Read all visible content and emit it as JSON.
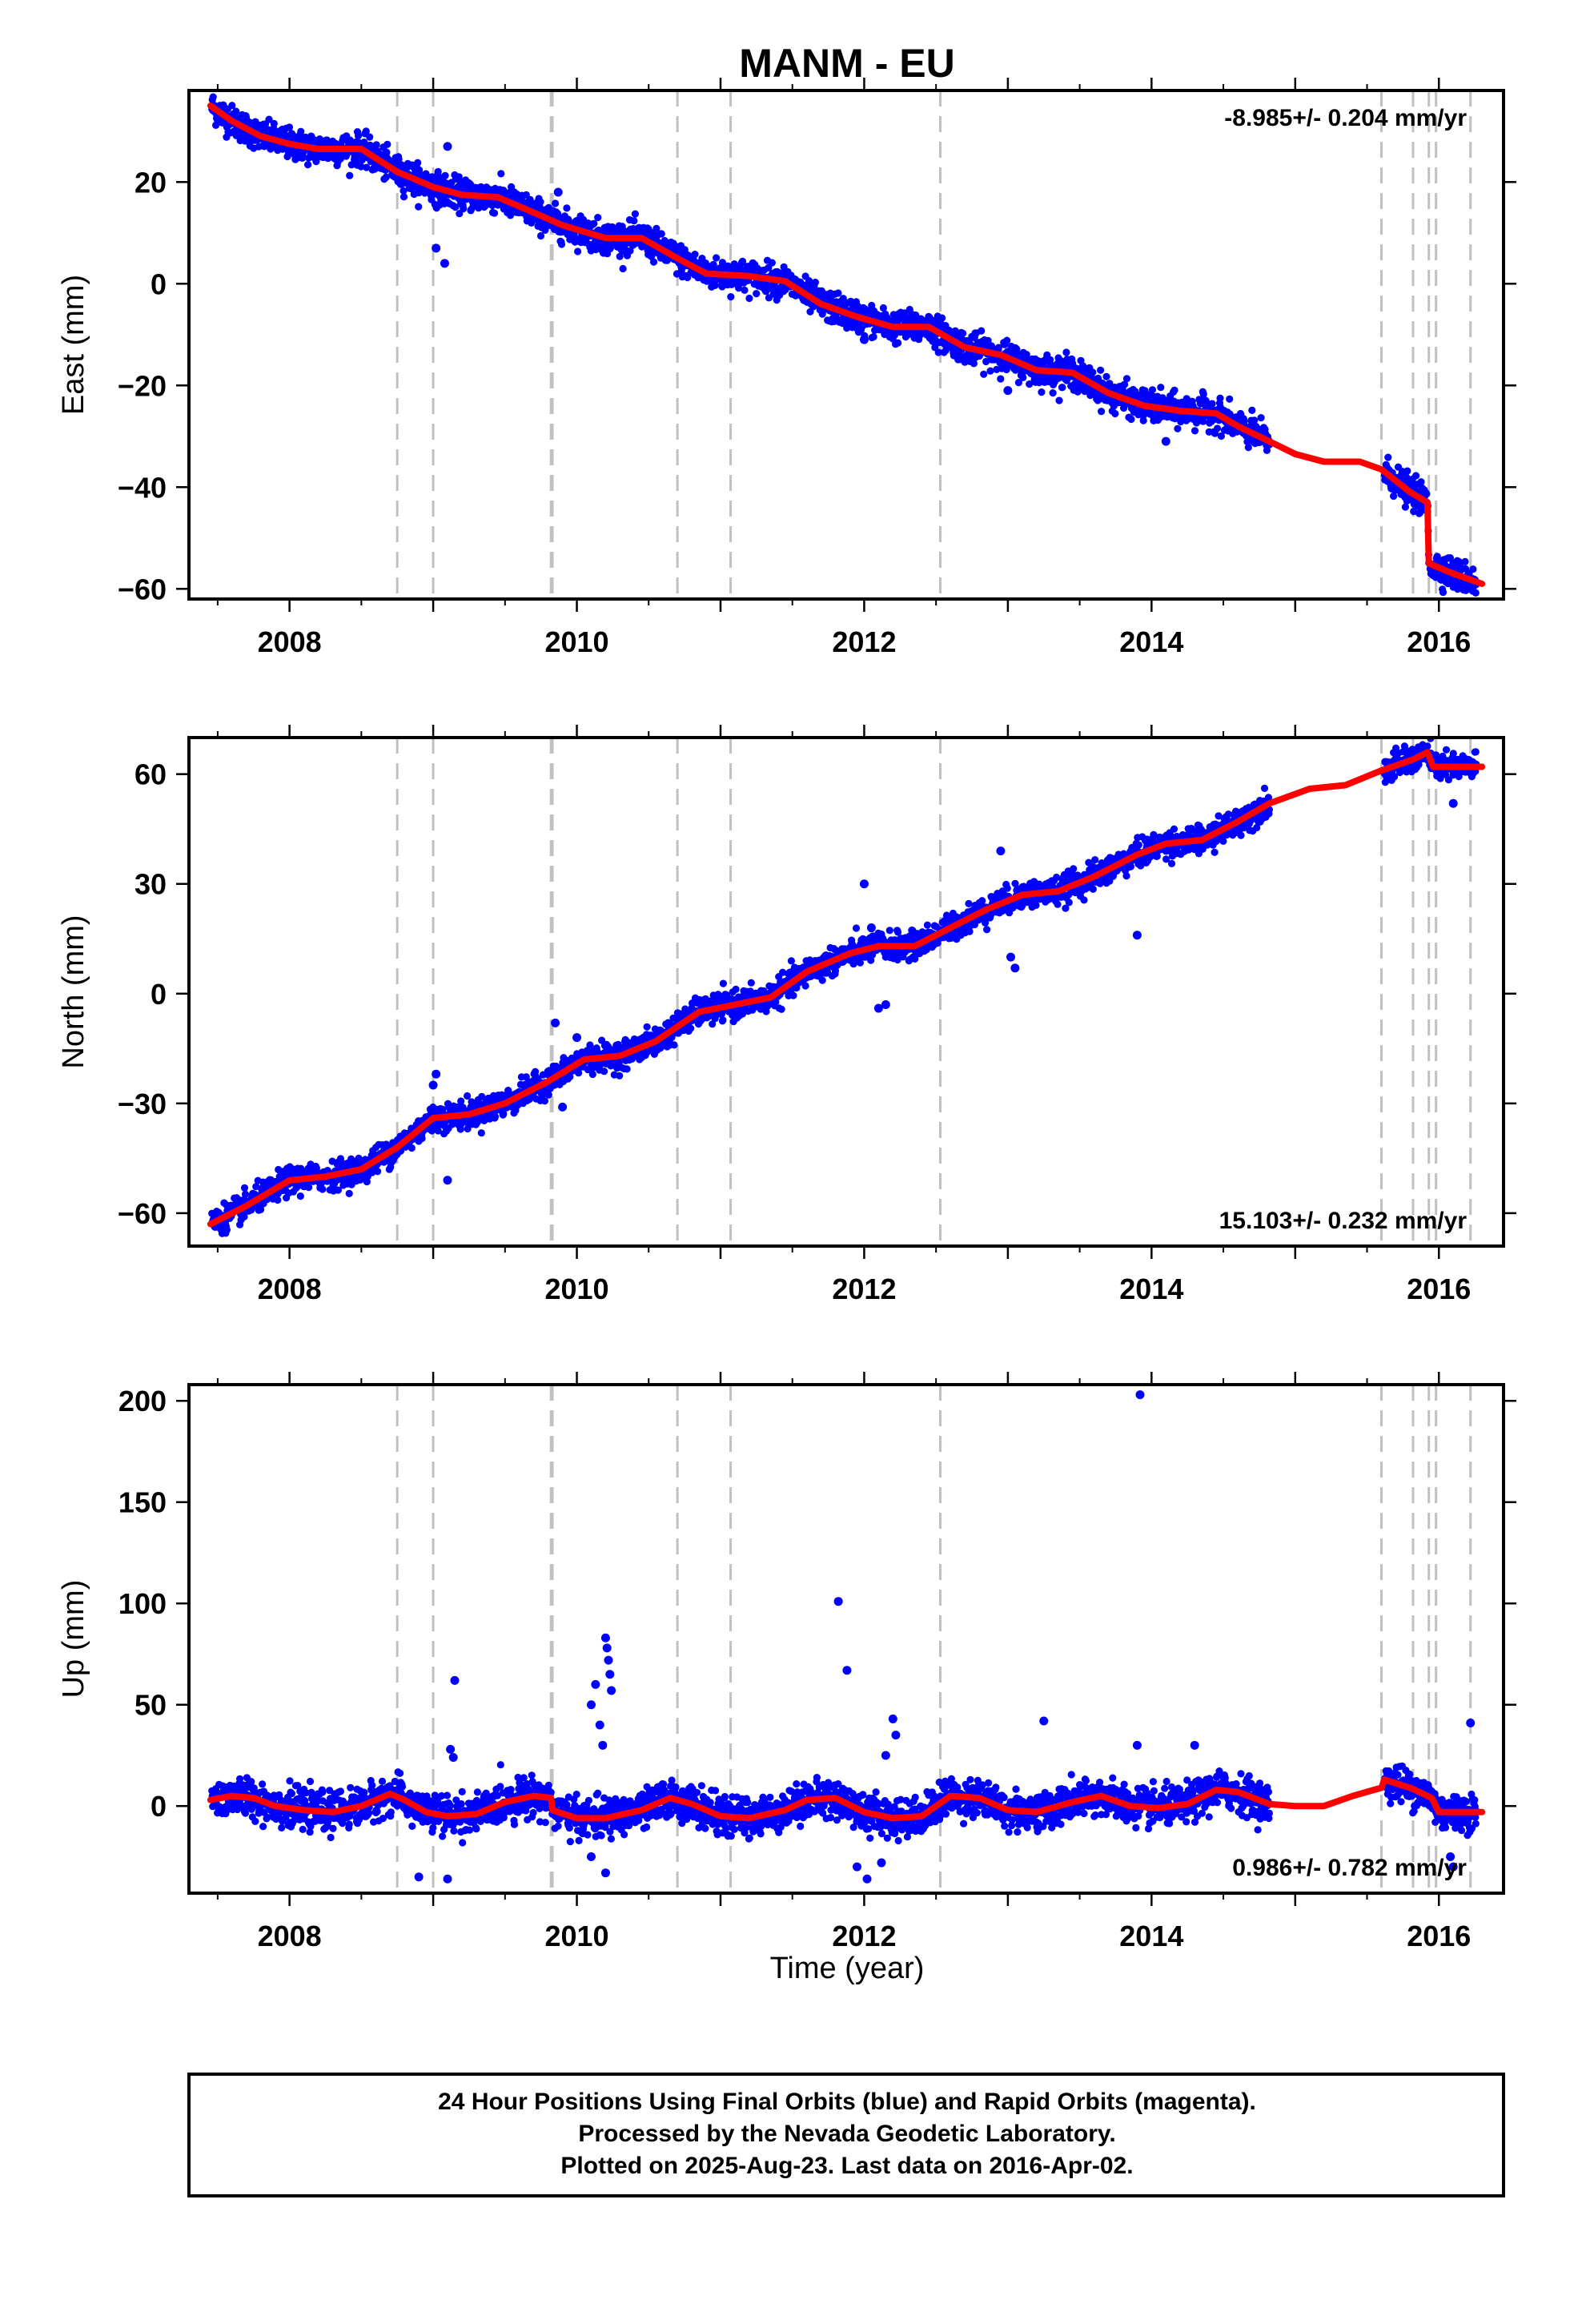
{
  "title": "MANM - EU",
  "x_axis": {
    "label": "Time (year)",
    "ticks": [
      2008,
      2010,
      2012,
      2014,
      2016
    ],
    "range": [
      2007.3,
      2016.45
    ]
  },
  "footer": {
    "line1": "24 Hour Positions Using Final Orbits (blue) and Rapid Orbits (magenta).",
    "line2": "Processed by the Nevada Geodetic Laboratory.",
    "line3": "Plotted on 2025-Aug-23. Last data on 2016-Apr-02."
  },
  "colors": {
    "final_orbits": "#0000ff",
    "model_fit": "#ff0000",
    "event_lines": "#c0c0c0",
    "frame": "#000000"
  },
  "chart_data": [
    {
      "type": "scatter",
      "component": "east",
      "ylabel": "East (mm)",
      "ylim": [
        -62,
        38
      ],
      "yticks": [
        20,
        0,
        -20,
        -40,
        -60
      ],
      "rate_label": "-8.985+/- 0.204 mm/yr",
      "rate_position": "top-right",
      "event_lines": [
        2008.75,
        2009.0,
        2009.82,
        2009.83,
        2010.7,
        2011.07,
        2012.53,
        2015.6,
        2015.82,
        2015.93,
        2015.98,
        2016.22
      ],
      "series": [
        {
          "kind": "model-fit",
          "x": [
            2007.45,
            2007.6,
            2007.8,
            2008.0,
            2008.2,
            2008.5,
            2008.75,
            2009.0,
            2009.2,
            2009.45,
            2009.7,
            2009.9,
            2010.2,
            2010.45,
            2010.7,
            2010.9,
            2011.2,
            2011.45,
            2011.7,
            2011.95,
            2012.2,
            2012.45,
            2012.7,
            2012.95,
            2013.2,
            2013.45,
            2013.7,
            2013.95,
            2014.2,
            2014.45,
            2014.6,
            2014.82,
            2015.0,
            2015.2,
            2015.45,
            2015.6,
            2015.8,
            2015.92,
            2015.93,
            2016.1,
            2016.3
          ],
          "y": [
            35,
            32,
            29,
            27.5,
            26.5,
            26.5,
            22,
            19,
            17.5,
            17,
            14,
            11.5,
            9,
            9,
            5,
            2,
            1.5,
            0.5,
            -4,
            -6.5,
            -8.5,
            -8.5,
            -12.5,
            -14,
            -17,
            -17.5,
            -21.5,
            -24,
            -25,
            -25.5,
            -28,
            -31,
            -33.5,
            -35,
            -35,
            -36.5,
            -41,
            -43,
            -55,
            -57,
            -59
          ]
        },
        {
          "kind": "daily-positions",
          "start": 2007.46,
          "end": 2016.26,
          "gap": [
            2014.82,
            2015.62
          ],
          "scatter": 1.5,
          "outliers": [
            [
              2009.02,
              7
            ],
            [
              2009.08,
              4
            ],
            [
              2009.1,
              27
            ],
            [
              2009.87,
              18
            ],
            [
              2012.0,
              -11
            ],
            [
              2013.0,
              -21
            ],
            [
              2014.1,
              -31
            ]
          ]
        }
      ]
    },
    {
      "type": "scatter",
      "component": "north",
      "ylabel": "North (mm)",
      "ylim": [
        -69,
        70
      ],
      "yticks": [
        60,
        30,
        0,
        -30,
        -60
      ],
      "rate_label": "15.103+/- 0.232 mm/yr",
      "rate_position": "bottom-right",
      "event_lines": [
        2008.75,
        2009.0,
        2009.82,
        2009.83,
        2010.7,
        2011.07,
        2012.53,
        2015.6,
        2015.82,
        2015.93,
        2015.98,
        2016.22
      ],
      "series": [
        {
          "kind": "model-fit",
          "x": [
            2007.45,
            2007.7,
            2008.0,
            2008.25,
            2008.5,
            2008.75,
            2009.0,
            2009.25,
            2009.5,
            2009.8,
            2010.05,
            2010.3,
            2010.55,
            2010.85,
            2011.1,
            2011.35,
            2011.6,
            2011.9,
            2012.1,
            2012.35,
            2012.6,
            2012.85,
            2013.1,
            2013.35,
            2013.6,
            2013.9,
            2014.1,
            2014.35,
            2014.6,
            2014.82,
            2015.1,
            2015.35,
            2015.6,
            2015.82,
            2015.92,
            2015.96,
            2016.1,
            2016.3
          ],
          "y": [
            -63,
            -58,
            -51,
            -50,
            -48,
            -42,
            -34,
            -33,
            -30,
            -24,
            -18,
            -17,
            -13,
            -5,
            -3,
            -1,
            6,
            11,
            13,
            13,
            18,
            23,
            27,
            28,
            32,
            38,
            41,
            42,
            47,
            52,
            56,
            57,
            61,
            64,
            66,
            62,
            62,
            62
          ]
        },
        {
          "kind": "daily-positions",
          "start": 2007.46,
          "end": 2016.26,
          "gap": [
            2014.82,
            2015.62
          ],
          "scatter": 1.8,
          "outliers": [
            [
              2009.0,
              -25
            ],
            [
              2009.02,
              -22
            ],
            [
              2009.1,
              -51
            ],
            [
              2009.85,
              -8
            ],
            [
              2009.9,
              -31
            ],
            [
              2010.0,
              -12
            ],
            [
              2012.0,
              30
            ],
            [
              2012.05,
              18
            ],
            [
              2012.1,
              -4
            ],
            [
              2012.15,
              -3
            ],
            [
              2012.95,
              39
            ],
            [
              2013.02,
              10
            ],
            [
              2013.05,
              7
            ],
            [
              2013.9,
              16
            ],
            [
              2016.1,
              52
            ]
          ]
        }
      ]
    },
    {
      "type": "scatter",
      "component": "up",
      "ylabel": "Up (mm)",
      "ylim": [
        -43,
        208
      ],
      "yticks": [
        200,
        150,
        100,
        50,
        0
      ],
      "rate_label": "0.986+/- 0.782 mm/yr",
      "rate_position": "bottom-right",
      "event_lines": [
        2008.75,
        2009.0,
        2009.82,
        2009.83,
        2010.7,
        2011.07,
        2012.53,
        2015.6,
        2015.82,
        2015.93,
        2015.98,
        2016.22
      ],
      "series": [
        {
          "kind": "model-fit",
          "x": [
            2007.45,
            2007.6,
            2007.75,
            2007.9,
            2008.1,
            2008.3,
            2008.5,
            2008.7,
            2008.8,
            2008.95,
            2009.1,
            2009.3,
            2009.5,
            2009.7,
            2009.82,
            2009.83,
            2010.0,
            2010.2,
            2010.45,
            2010.65,
            2010.8,
            2011.0,
            2011.2,
            2011.45,
            2011.6,
            2011.8,
            2012.0,
            2012.2,
            2012.4,
            2012.6,
            2012.8,
            2013.0,
            2013.2,
            2013.45,
            2013.65,
            2013.85,
            2014.05,
            2014.25,
            2014.45,
            2014.6,
            2014.82,
            2015.0,
            2015.2,
            2015.4,
            2015.6,
            2015.62,
            2015.8,
            2015.95,
            2016.0,
            2016.3
          ],
          "y": [
            3,
            5,
            4,
            0,
            -2,
            -3,
            0,
            6,
            3,
            -3,
            -5,
            -4,
            2,
            5,
            4,
            -2,
            -6,
            -6,
            -2,
            4,
            1,
            -5,
            -6,
            -2,
            3,
            4,
            -3,
            -6,
            -5,
            5,
            4,
            -2,
            -3,
            2,
            5,
            0,
            -1,
            1,
            8,
            7,
            1,
            0,
            0,
            5,
            9,
            13,
            9,
            4,
            -3,
            -3
          ]
        },
        {
          "kind": "daily-positions",
          "start": 2007.46,
          "end": 2016.26,
          "gap": [
            2014.82,
            2015.62
          ],
          "scatter": 4.5,
          "outliers": [
            [
              2008.9,
              -35
            ],
            [
              2009.1,
              -36
            ],
            [
              2009.15,
              62
            ],
            [
              2009.12,
              28
            ],
            [
              2009.14,
              24
            ],
            [
              2010.1,
              50
            ],
            [
              2010.13,
              60
            ],
            [
              2010.16,
              40
            ],
            [
              2010.18,
              30
            ],
            [
              2010.2,
              83
            ],
            [
              2010.21,
              78
            ],
            [
              2010.22,
              72
            ],
            [
              2010.23,
              65
            ],
            [
              2010.24,
              57
            ],
            [
              2010.1,
              -25
            ],
            [
              2010.2,
              -33
            ],
            [
              2011.82,
              101
            ],
            [
              2011.88,
              67
            ],
            [
              2011.95,
              -30
            ],
            [
              2012.02,
              -36
            ],
            [
              2012.12,
              -28
            ],
            [
              2012.15,
              25
            ],
            [
              2012.2,
              43
            ],
            [
              2012.22,
              35
            ],
            [
              2013.25,
              42
            ],
            [
              2013.92,
              203
            ],
            [
              2013.9,
              30
            ],
            [
              2014.3,
              30
            ],
            [
              2016.08,
              -25
            ],
            [
              2016.1,
              -30
            ],
            [
              2016.22,
              41
            ]
          ]
        }
      ]
    }
  ]
}
